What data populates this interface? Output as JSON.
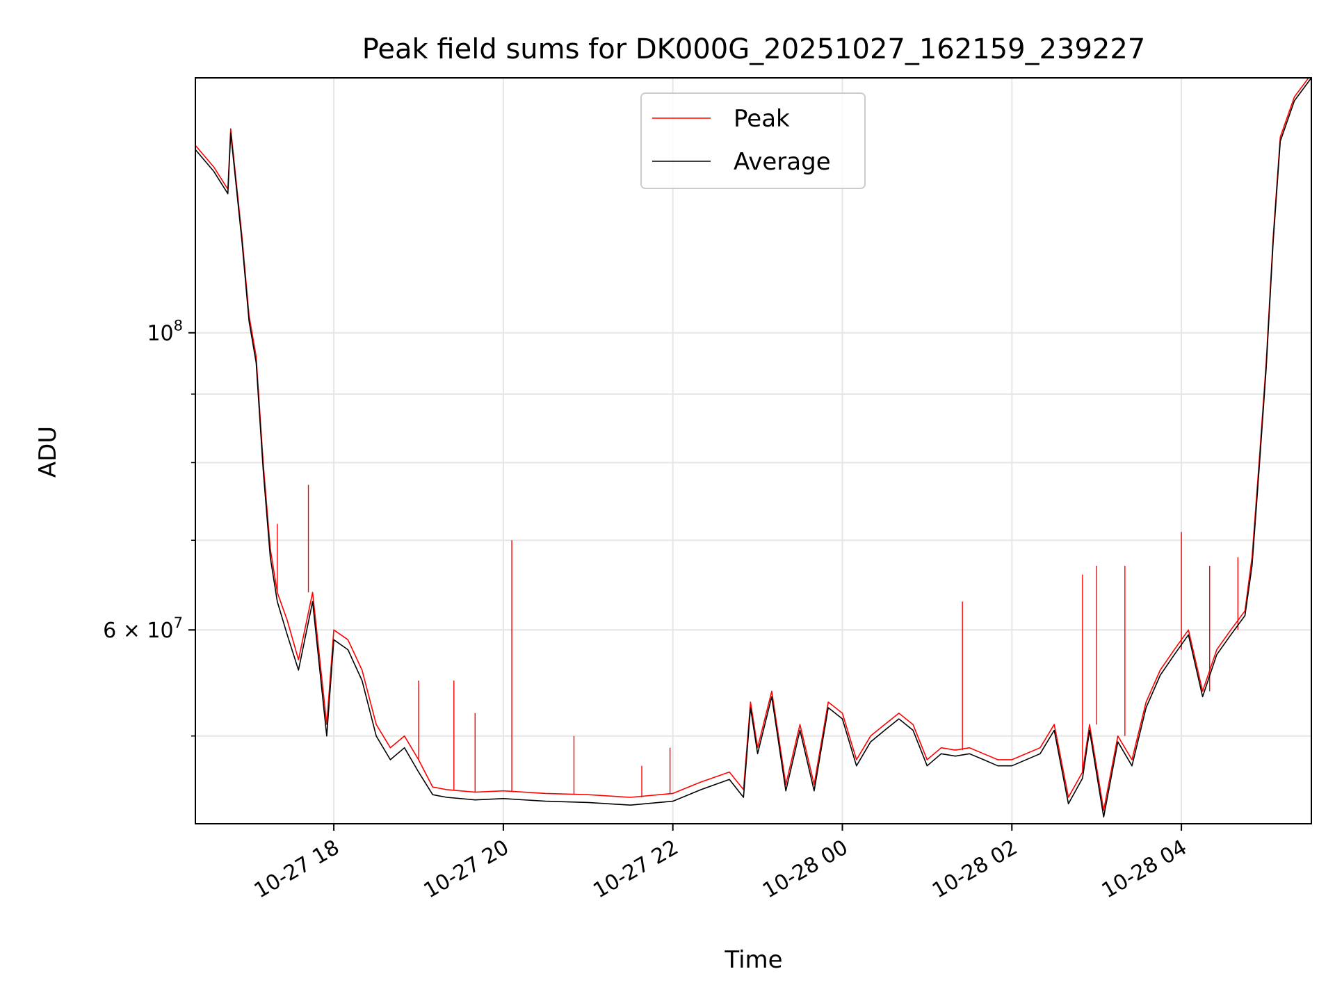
{
  "chart_data": {
    "type": "line",
    "title": "Peak field sums for DK000G_20251027_162159_239227",
    "xlabel": "Time",
    "ylabel": "ADU",
    "yscale": "log",
    "grid": true,
    "legend_position": "upper-center",
    "xlim": [
      "2025-10-27 16:22",
      "2025-10-28 05:32"
    ],
    "ylim": [
      43000000,
      155000000
    ],
    "x_ticks": [
      {
        "value": "2025-10-27 18:00",
        "label": "10-27 18"
      },
      {
        "value": "2025-10-27 20:00",
        "label": "10-27 20"
      },
      {
        "value": "2025-10-27 22:00",
        "label": "10-27 22"
      },
      {
        "value": "2025-10-28 00:00",
        "label": "10-28 00"
      },
      {
        "value": "2025-10-28 02:00",
        "label": "10-28 02"
      },
      {
        "value": "2025-10-28 04:00",
        "label": "10-28 04"
      }
    ],
    "y_ticks": [
      {
        "value": 100000000,
        "base": "10",
        "exp": "8",
        "label": "10^8"
      },
      {
        "value": 60000000,
        "mantissa": "6",
        "base": "10",
        "exp": "7",
        "label": "6×10^7"
      }
    ],
    "y_minor_ticks": [
      50000000,
      70000000,
      80000000,
      90000000
    ],
    "x": [
      "2025-10-27 16:22",
      "2025-10-27 16:35",
      "2025-10-27 16:45",
      "2025-10-27 16:47",
      "2025-10-27 16:55",
      "2025-10-27 17:00",
      "2025-10-27 17:05",
      "2025-10-27 17:10",
      "2025-10-27 17:15",
      "2025-10-27 17:20",
      "2025-10-27 17:27",
      "2025-10-27 17:35",
      "2025-10-27 17:45",
      "2025-10-27 17:55",
      "2025-10-27 18:00",
      "2025-10-27 18:10",
      "2025-10-27 18:20",
      "2025-10-27 18:30",
      "2025-10-27 18:40",
      "2025-10-27 18:50",
      "2025-10-27 19:00",
      "2025-10-27 19:10",
      "2025-10-27 19:20",
      "2025-10-27 19:40",
      "2025-10-27 20:00",
      "2025-10-27 20:30",
      "2025-10-27 21:00",
      "2025-10-27 21:30",
      "2025-10-27 22:00",
      "2025-10-27 22:20",
      "2025-10-27 22:40",
      "2025-10-27 22:50",
      "2025-10-27 22:55",
      "2025-10-27 23:00",
      "2025-10-27 23:10",
      "2025-10-27 23:20",
      "2025-10-27 23:30",
      "2025-10-27 23:40",
      "2025-10-27 23:50",
      "2025-10-28 00:00",
      "2025-10-28 00:10",
      "2025-10-28 00:20",
      "2025-10-28 00:30",
      "2025-10-28 00:40",
      "2025-10-28 00:50",
      "2025-10-28 01:00",
      "2025-10-28 01:10",
      "2025-10-28 01:20",
      "2025-10-28 01:30",
      "2025-10-28 01:40",
      "2025-10-28 01:50",
      "2025-10-28 02:00",
      "2025-10-28 02:20",
      "2025-10-28 02:30",
      "2025-10-28 02:40",
      "2025-10-28 02:50",
      "2025-10-28 02:55",
      "2025-10-28 03:05",
      "2025-10-28 03:15",
      "2025-10-28 03:25",
      "2025-10-28 03:35",
      "2025-10-28 03:45",
      "2025-10-28 03:55",
      "2025-10-28 04:05",
      "2025-10-28 04:15",
      "2025-10-28 04:25",
      "2025-10-28 04:35",
      "2025-10-28 04:45",
      "2025-10-28 04:50",
      "2025-10-28 04:55",
      "2025-10-28 05:00",
      "2025-10-28 05:05",
      "2025-10-28 05:10",
      "2025-10-28 05:20",
      "2025-10-28 05:32"
    ],
    "series": [
      {
        "name": "Peak",
        "color": "#ff0000",
        "values": [
          138000000,
          133000000,
          128000000,
          142000000,
          118000000,
          103000000,
          96000000,
          80000000,
          69000000,
          64000000,
          61000000,
          57000000,
          64000000,
          51000000,
          60000000,
          59000000,
          56000000,
          51000000,
          49000000,
          50000000,
          48000000,
          45800000,
          45600000,
          45400000,
          45500000,
          45300000,
          45200000,
          45000000,
          45300000,
          46200000,
          47000000,
          45600000,
          53000000,
          49000000,
          54000000,
          46000000,
          51000000,
          46000000,
          53000000,
          52000000,
          48000000,
          50000000,
          51000000,
          52000000,
          51000000,
          48000000,
          49000000,
          48800000,
          49000000,
          48500000,
          48000000,
          48000000,
          49000000,
          51000000,
          45000000,
          47000000,
          51000000,
          44000000,
          50000000,
          48000000,
          53000000,
          56000000,
          58000000,
          60000000,
          54000000,
          58000000,
          60000000,
          62000000,
          68000000,
          80000000,
          95000000,
          118000000,
          140000000,
          150000000,
          156000000
        ],
        "spikes": [
          {
            "x": "2025-10-27 17:20",
            "value": 72000000
          },
          {
            "x": "2025-10-27 17:42",
            "value": 77000000
          },
          {
            "x": "2025-10-27 19:00",
            "value": 55000000
          },
          {
            "x": "2025-10-27 19:25",
            "value": 55000000
          },
          {
            "x": "2025-10-27 19:40",
            "value": 52000000
          },
          {
            "x": "2025-10-27 20:06",
            "value": 70000000
          },
          {
            "x": "2025-10-27 20:50",
            "value": 50000000
          },
          {
            "x": "2025-10-27 21:38",
            "value": 47500000
          },
          {
            "x": "2025-10-27 21:58",
            "value": 49000000
          },
          {
            "x": "2025-10-28 01:25",
            "value": 63000000
          },
          {
            "x": "2025-10-28 02:50",
            "value": 66000000
          },
          {
            "x": "2025-10-28 03:00",
            "value": 67000000
          },
          {
            "x": "2025-10-28 03:20",
            "value": 67000000
          },
          {
            "x": "2025-10-28 04:00",
            "value": 71000000
          },
          {
            "x": "2025-10-28 04:20",
            "value": 67000000
          },
          {
            "x": "2025-10-28 04:40",
            "value": 68000000
          }
        ]
      },
      {
        "name": "Average",
        "color": "#000000",
        "values": [
          137000000,
          132000000,
          127000000,
          141000000,
          117000000,
          102000000,
          95000000,
          79000000,
          68000000,
          63000000,
          59500000,
          56000000,
          63000000,
          50000000,
          59000000,
          58000000,
          55000000,
          50000000,
          48000000,
          49000000,
          47000000,
          45200000,
          45000000,
          44800000,
          44900000,
          44700000,
          44600000,
          44400000,
          44700000,
          45600000,
          46400000,
          45000000,
          52500000,
          48500000,
          53500000,
          45500000,
          50500000,
          45500000,
          52500000,
          51500000,
          47500000,
          49500000,
          50500000,
          51500000,
          50500000,
          47500000,
          48500000,
          48300000,
          48500000,
          48000000,
          47500000,
          47500000,
          48500000,
          50500000,
          44500000,
          46500000,
          50500000,
          43500000,
          49500000,
          47500000,
          52500000,
          55500000,
          57500000,
          59500000,
          53500000,
          57500000,
          59500000,
          61500000,
          67000000,
          79000000,
          94000000,
          117000000,
          139000000,
          149000000,
          155000000
        ]
      }
    ]
  }
}
